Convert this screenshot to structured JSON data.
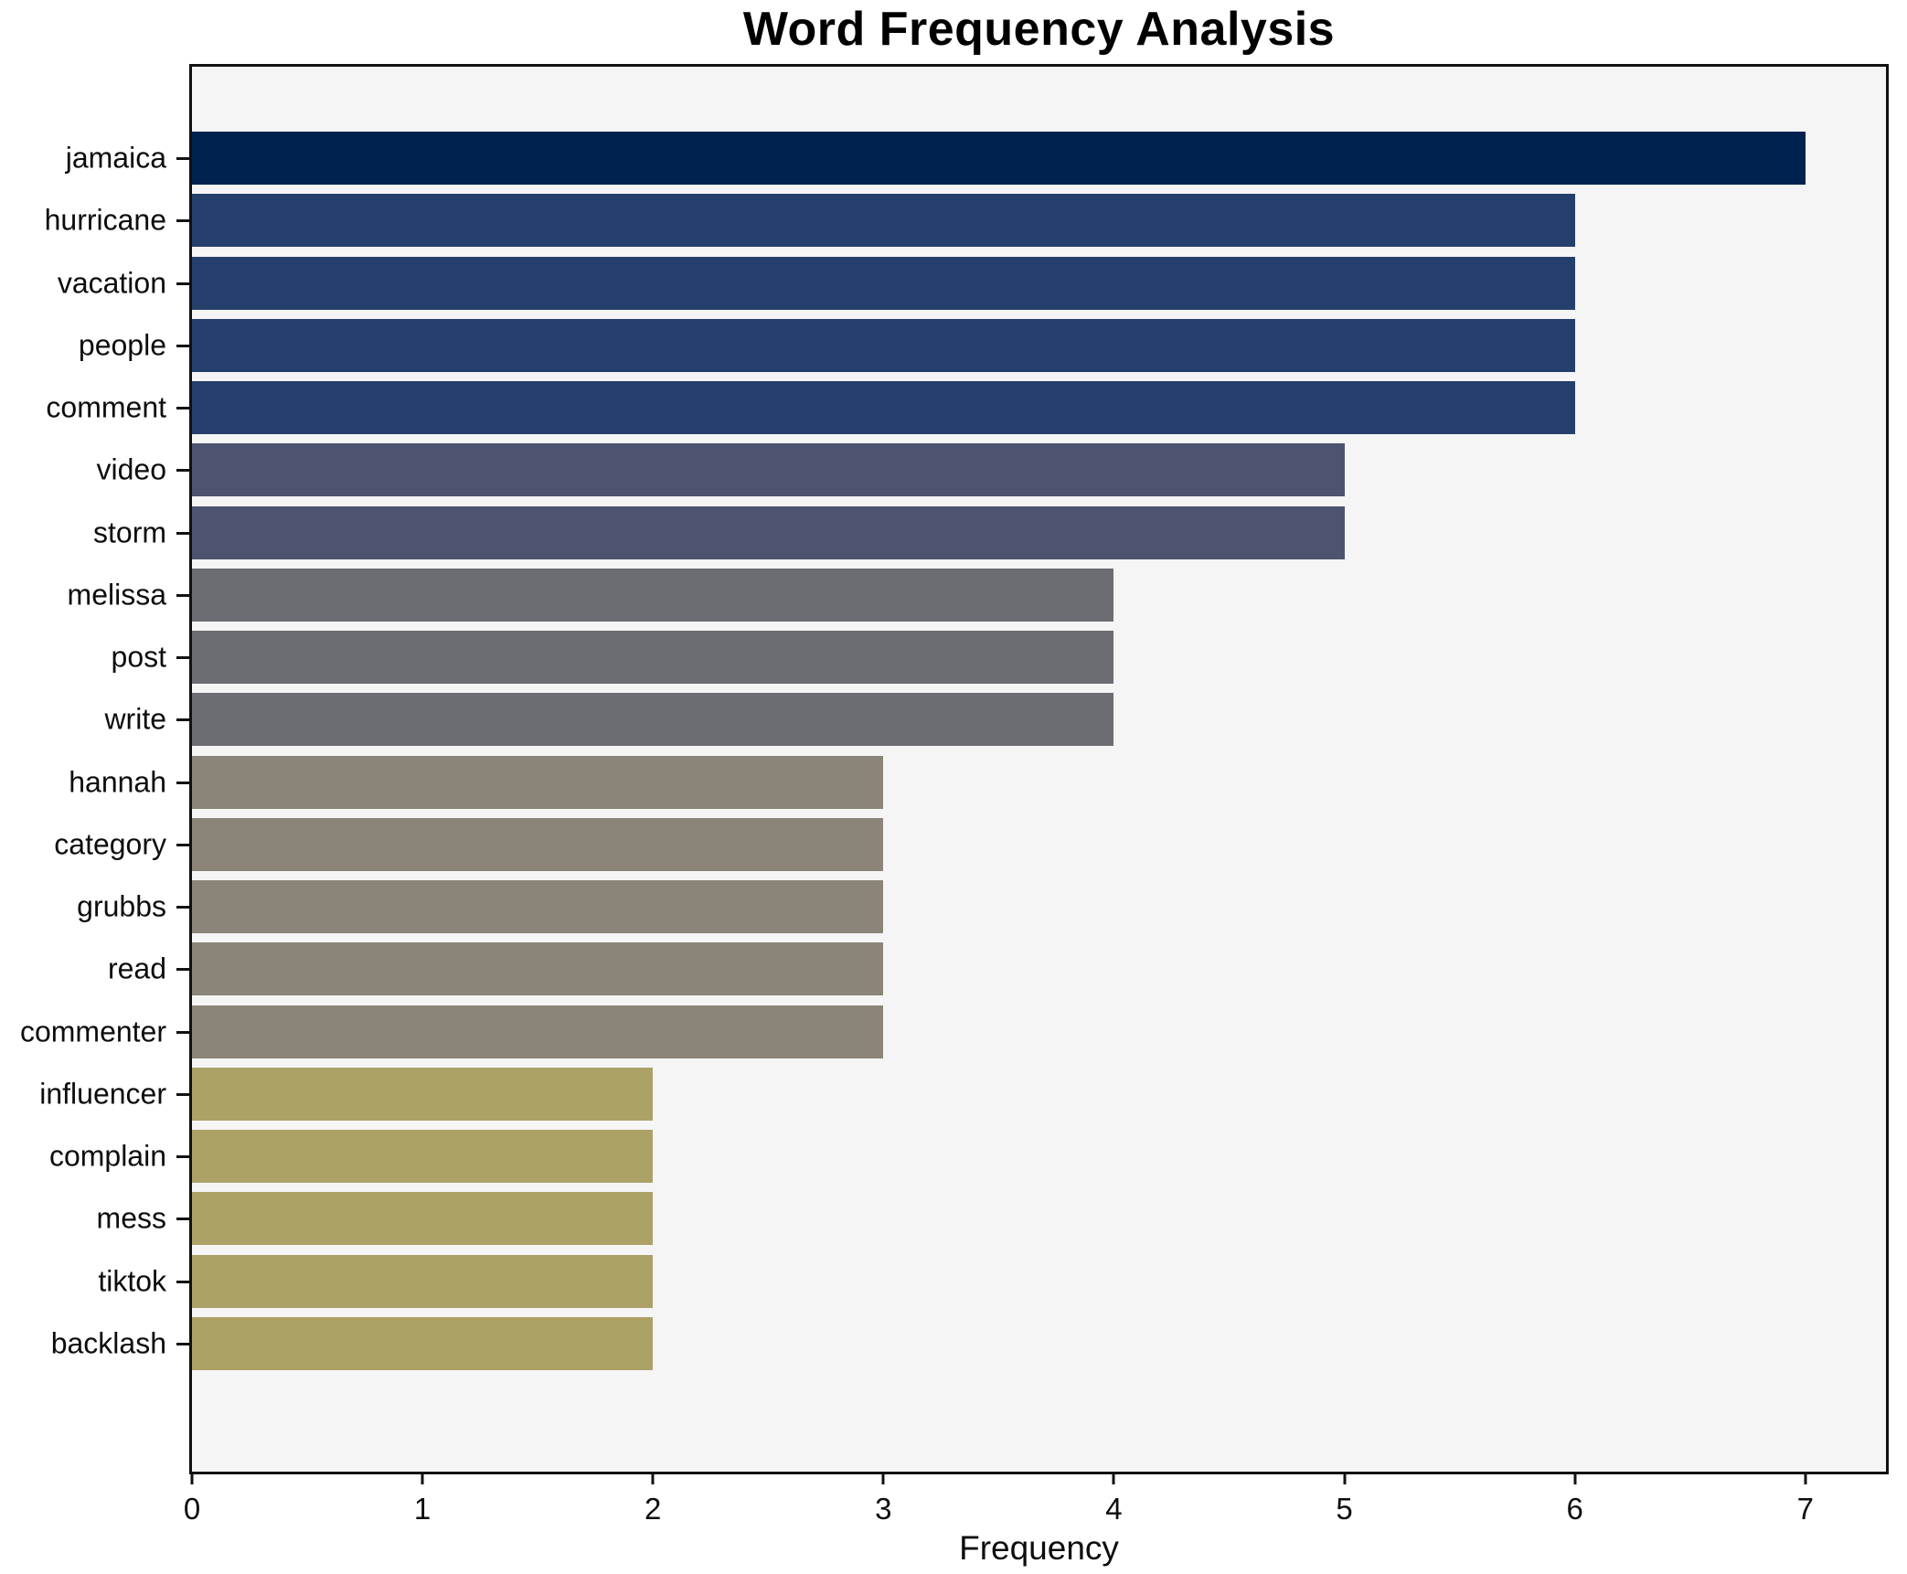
{
  "title": "Word Frequency Analysis",
  "chart_data": {
    "type": "bar",
    "orientation": "horizontal",
    "title": "Word Frequency Analysis",
    "xlabel": "Frequency",
    "ylabel": "",
    "categories": [
      "jamaica",
      "hurricane",
      "vacation",
      "people",
      "comment",
      "video",
      "storm",
      "melissa",
      "post",
      "write",
      "hannah",
      "category",
      "grubbs",
      "read",
      "commenter",
      "influencer",
      "complain",
      "mess",
      "tiktok",
      "backlash"
    ],
    "values": [
      7,
      6,
      6,
      6,
      6,
      5,
      5,
      4,
      4,
      4,
      3,
      3,
      3,
      3,
      3,
      2,
      2,
      2,
      2,
      2
    ],
    "bar_colors": [
      "#00224e",
      "#253f6c",
      "#253f6c",
      "#253f6c",
      "#253f6c",
      "#4d5470",
      "#4d5470",
      "#6c6d72",
      "#6c6d72",
      "#6c6d72",
      "#8a8578",
      "#8a8578",
      "#8a8578",
      "#8a8578",
      "#8a8578",
      "#aca167",
      "#aca167",
      "#aca167",
      "#aca167",
      "#aca167"
    ],
    "xticks": [
      0,
      1,
      2,
      3,
      4,
      5,
      6,
      7
    ],
    "xlim": [
      0,
      7.35
    ],
    "grid": false,
    "legend": null,
    "plot_bg": "#f5f5f6",
    "fig_bg": "#ffffff",
    "spine_color": "#111111"
  }
}
